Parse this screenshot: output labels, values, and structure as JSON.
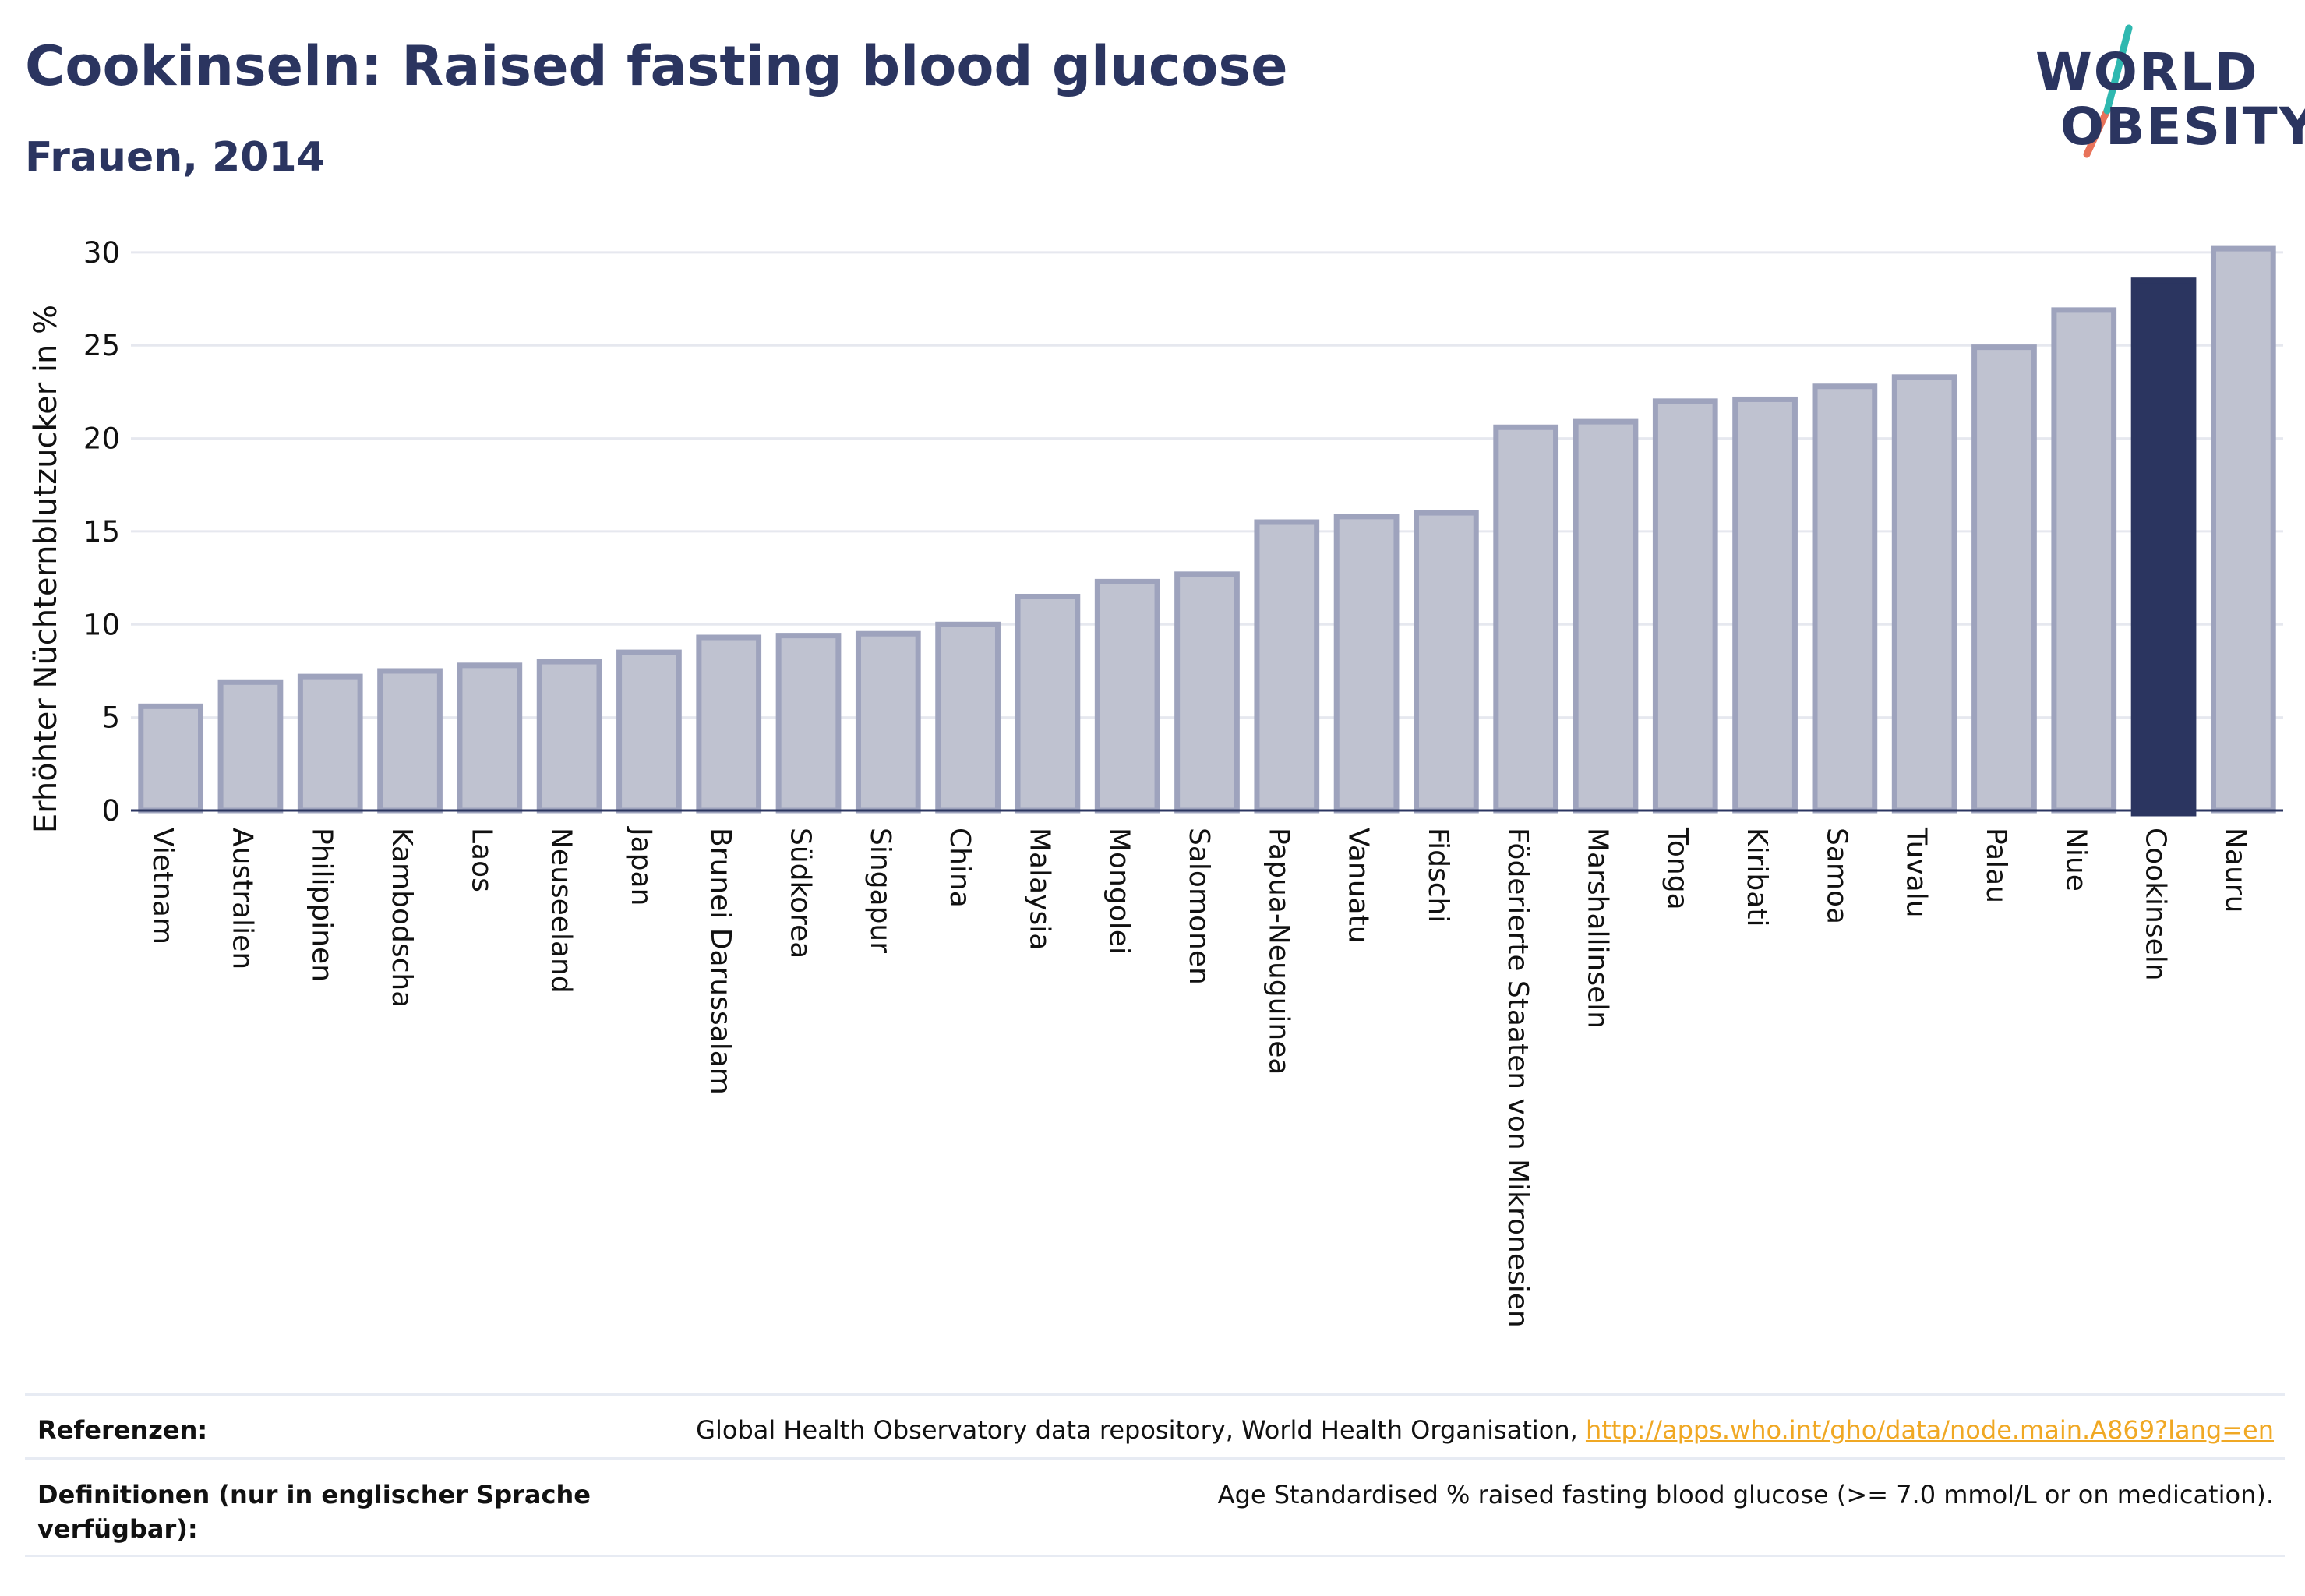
{
  "title": "Cookinseln: Raised fasting blood glucose",
  "subtitle": "Frauen, 2014",
  "logo": {
    "line1": "WORLD",
    "line2": "OBESITY"
  },
  "chart_data": {
    "type": "bar",
    "ylabel": "Erhöhter Nüchternblutzucker in %",
    "ylim": [
      0,
      31
    ],
    "yticks": [
      0,
      5,
      10,
      15,
      20,
      25,
      30
    ],
    "grid": true,
    "highlight": "Cookinseln",
    "colors": {
      "bar": "#bfc2d0",
      "bar_edge": "#9ea3bd",
      "highlight": "#2b3560",
      "grid": "#e6e8ef",
      "axis": "#2b3560"
    },
    "categories": [
      "Vietnam",
      "Australien",
      "Philippinen",
      "Kambodscha",
      "Laos",
      "Neuseeland",
      "Japan",
      "Brunei Darussalam",
      "Südkorea",
      "Singapur",
      "China",
      "Malaysia",
      "Mongolei",
      "Salomonen",
      "Papua-Neuguinea",
      "Vanuatu",
      "Fidschi",
      "Föderierte Staaten von Mikronesien",
      "Marshallinseln",
      "Tonga",
      "Kiribati",
      "Samoa",
      "Tuvalu",
      "Palau",
      "Niue",
      "Cookinseln",
      "Nauru"
    ],
    "values": [
      5.6,
      6.9,
      7.2,
      7.5,
      7.8,
      8.0,
      8.5,
      9.3,
      9.4,
      9.5,
      10.0,
      11.5,
      12.3,
      12.7,
      15.5,
      15.8,
      16.0,
      20.6,
      20.9,
      22.0,
      22.1,
      22.8,
      23.3,
      24.9,
      26.9,
      28.5,
      30.2
    ]
  },
  "footer": {
    "references_label": "Referenzen:",
    "references_text": "Global Health Observatory data repository, World Health Organisation, ",
    "references_link": "http://apps.who.int/gho/data/node.main.A869?lang=en",
    "definitions_label": "Definitionen (nur in englischer Sprache verfügbar):",
    "definitions_text": "Age Standardised % raised fasting blood glucose (>= 7.0 mmol/L or on medication)."
  }
}
